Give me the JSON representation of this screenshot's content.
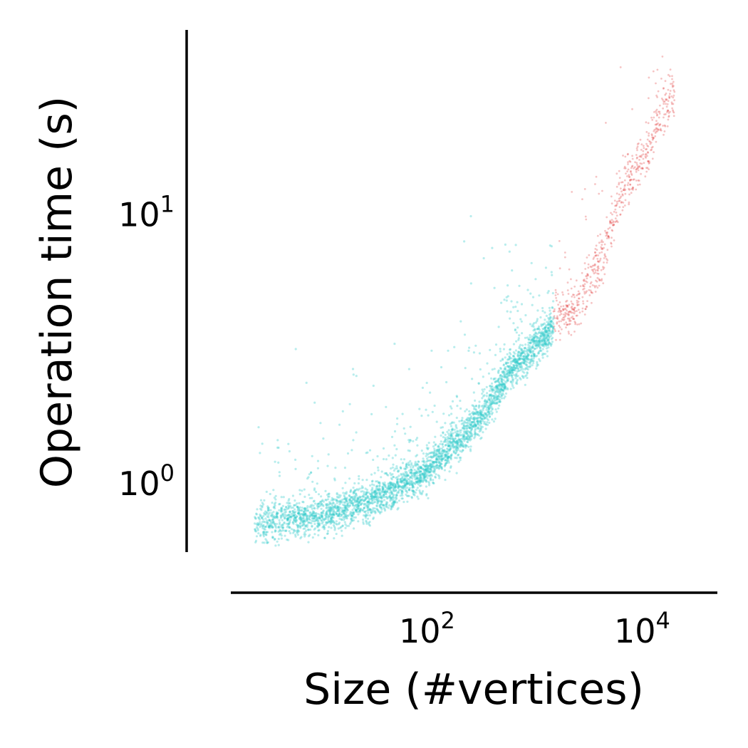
{
  "chart_data": {
    "type": "scatter",
    "title": "",
    "xlabel": "Size (#vertices)",
    "ylabel": "Operation time (s)",
    "x_scale": "log",
    "y_scale": "log",
    "xlim": [
      1.5,
      50000
    ],
    "ylim": [
      0.55,
      48
    ],
    "grid": false,
    "legend": "none",
    "x_ticks": [
      {
        "value": 100,
        "base": "10",
        "exponent": "2"
      },
      {
        "value": 10000,
        "base": "10",
        "exponent": "4"
      }
    ],
    "y_ticks": [
      {
        "value": 1,
        "base": "10",
        "exponent": "0"
      },
      {
        "value": 10,
        "base": "10",
        "exponent": "1"
      }
    ],
    "series": [
      {
        "color": "#33cccc",
        "point_alpha": 0.35,
        "trend": [
          {
            "x": 2.5,
            "y": 0.7
          },
          {
            "x": 10,
            "y": 0.75
          },
          {
            "x": 30,
            "y": 0.85
          },
          {
            "x": 100,
            "y": 1.1
          },
          {
            "x": 300,
            "y": 1.7
          },
          {
            "x": 600,
            "y": 2.6
          },
          {
            "x": 1000,
            "y": 3.2
          },
          {
            "x": 1500,
            "y": 3.7
          }
        ]
      },
      {
        "color": "#e03a3a",
        "point_alpha": 0.3,
        "trend": [
          {
            "x": 1500,
            "y": 4.0
          },
          {
            "x": 2500,
            "y": 4.6
          },
          {
            "x": 4000,
            "y": 6.5
          },
          {
            "x": 6000,
            "y": 11
          },
          {
            "x": 10000,
            "y": 16
          },
          {
            "x": 20000,
            "y": 28
          }
        ]
      }
    ]
  }
}
